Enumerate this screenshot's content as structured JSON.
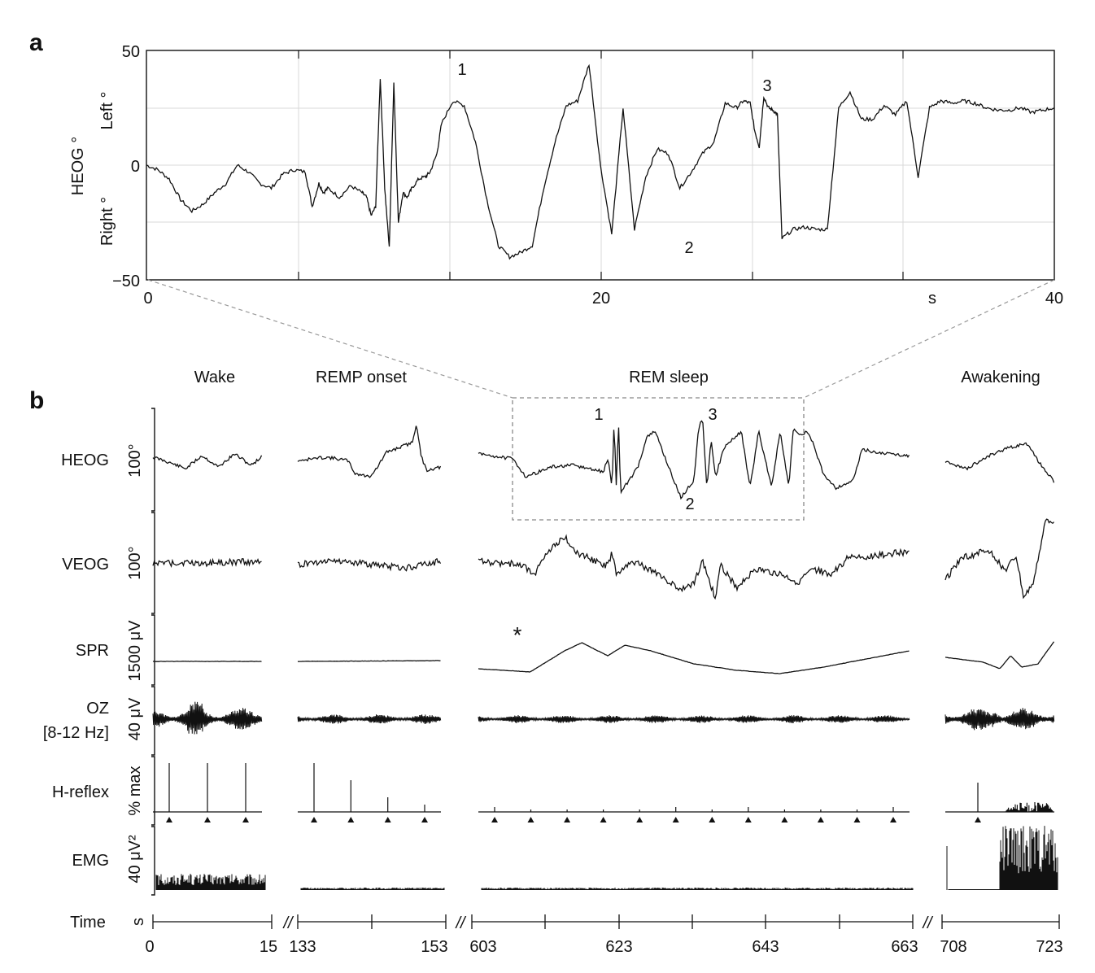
{
  "panel_a": {
    "letter": "a",
    "ylabel": "HEOG °",
    "ylabel_top": "Left °",
    "ylabel_bottom": "Right °",
    "xunit": "s"
  },
  "panel_b": {
    "letter": "b",
    "time_label": "Time",
    "time_unit": "s",
    "break_mark": "//",
    "star_mark": "*"
  },
  "chart_data": [
    {
      "type": "line",
      "panel": "a",
      "ylabel": "HEOG °",
      "ylim": [
        -50,
        50
      ],
      "yticks": [
        50,
        0,
        -50
      ],
      "ytick_labels": [
        "50",
        "0",
        "−50"
      ],
      "xlim": [
        0,
        40
      ],
      "xticks": [
        0,
        20,
        40
      ],
      "xtick_labels": [
        "0",
        "20",
        "40"
      ],
      "xlabel": "s",
      "grid": true,
      "annotations": [
        {
          "text": "1",
          "x": 10.5,
          "y": 42
        },
        {
          "text": "2",
          "x": 21.8,
          "y": -43
        },
        {
          "text": "3",
          "x": 27.6,
          "y": 35
        }
      ],
      "series": [
        {
          "x": [
            0,
            0.5,
            1.0,
            1.5,
            2.0,
            2.5,
            3.0,
            3.5,
            4.0,
            4.5,
            5.0,
            5.5,
            6.0,
            6.5,
            7.0,
            7.3,
            7.6,
            7.8,
            8.0,
            8.5,
            9.0,
            9.5,
            9.7,
            9.9,
            10.1,
            10.3,
            10.5,
            10.7,
            10.9,
            11.1,
            11.3,
            11.5,
            11.7,
            12.0,
            12.3,
            12.5,
            12.8,
            13.0,
            13.5,
            14.0,
            14.5,
            15.0,
            15.5,
            16.0,
            16.5,
            17.0,
            17.5,
            18.0,
            18.5,
            19.0,
            19.5,
            20.0,
            20.5,
            21.0,
            21.5,
            22.0,
            22.5,
            23.0,
            23.5,
            24.0,
            24.5,
            25.0,
            25.5,
            26.0,
            26.3,
            26.6,
            26.8,
            27.0,
            27.2,
            27.4,
            27.6,
            27.8,
            28.0,
            28.5,
            29.0,
            29.5,
            30.0,
            30.5,
            31.0,
            31.5,
            32.0,
            32.5,
            33.0,
            33.5,
            34.0,
            34.5,
            35.0,
            35.5,
            36.0,
            36.5,
            37.0,
            37.5,
            38.0,
            38.5,
            39.0,
            39.5,
            40.0
          ],
          "y": [
            0,
            -2,
            -6,
            -15,
            -20,
            -17,
            -12,
            -8,
            0,
            -3,
            -8,
            -10,
            -4,
            -2,
            -3,
            -18,
            -8,
            -12,
            -10,
            -14,
            -9,
            -12,
            -14,
            -22,
            -18,
            38,
            -10,
            -36,
            36,
            -25,
            -12,
            -14,
            -10,
            -6,
            -5,
            -3,
            5,
            18,
            28,
            26,
            10,
            -15,
            -35,
            -40,
            -38,
            -35,
            -10,
            10,
            26,
            28,
            44,
            0,
            -30,
            25,
            -28,
            -5,
            7,
            5,
            -10,
            -3,
            5,
            10,
            27,
            25,
            28,
            27,
            15,
            8,
            30,
            25,
            24,
            22,
            -32,
            -28,
            -27,
            -28,
            -28,
            25,
            32,
            20,
            20,
            26,
            22,
            28,
            -5,
            25,
            28,
            27,
            28,
            27,
            25,
            24,
            24,
            25,
            23,
            24,
            25
          ]
        }
      ]
    },
    {
      "type": "line",
      "panel": "b",
      "title": "",
      "segments": [
        {
          "label": "Wake",
          "x_range": [
            0,
            15
          ],
          "tick_labels": [
            "0",
            "15"
          ]
        },
        {
          "label": "REMP onset",
          "x_range": [
            133,
            153
          ],
          "tick_labels": [
            "133",
            "153"
          ]
        },
        {
          "label": "REM sleep",
          "x_range": [
            603,
            663
          ],
          "tick_labels": [
            "603",
            "623",
            "643",
            "663"
          ]
        },
        {
          "label": "Awakening",
          "x_range": [
            708,
            723
          ],
          "tick_labels": [
            "708",
            "723"
          ]
        }
      ],
      "rows": [
        {
          "name": "HEOG",
          "scale": "100°"
        },
        {
          "name": "VEOG",
          "scale": "100°"
        },
        {
          "name": "SPR",
          "scale": "1500 μV"
        },
        {
          "name": "OZ [8-12 Hz]",
          "name_line1": "OZ",
          "name_line2": "[8-12 Hz]",
          "scale": "40 μV"
        },
        {
          "name": "H-reflex",
          "scale": "% max"
        },
        {
          "name": "EMG",
          "scale": "40 μV²"
        }
      ],
      "inset_annotations": [
        "1",
        "2",
        "3"
      ],
      "hreflex_peaks": {
        "Wake": [
          1.0,
          1.0,
          1.0
        ],
        "REMP onset": [
          1.0,
          0.65,
          0.3,
          0.15
        ],
        "REM sleep": [
          0.1,
          0.05,
          0.05,
          0.05,
          0.05,
          0.1,
          0.05,
          0.1,
          0.05,
          0.05,
          0.05,
          0.1
        ],
        "Awakening": [
          0.6
        ]
      }
    }
  ]
}
